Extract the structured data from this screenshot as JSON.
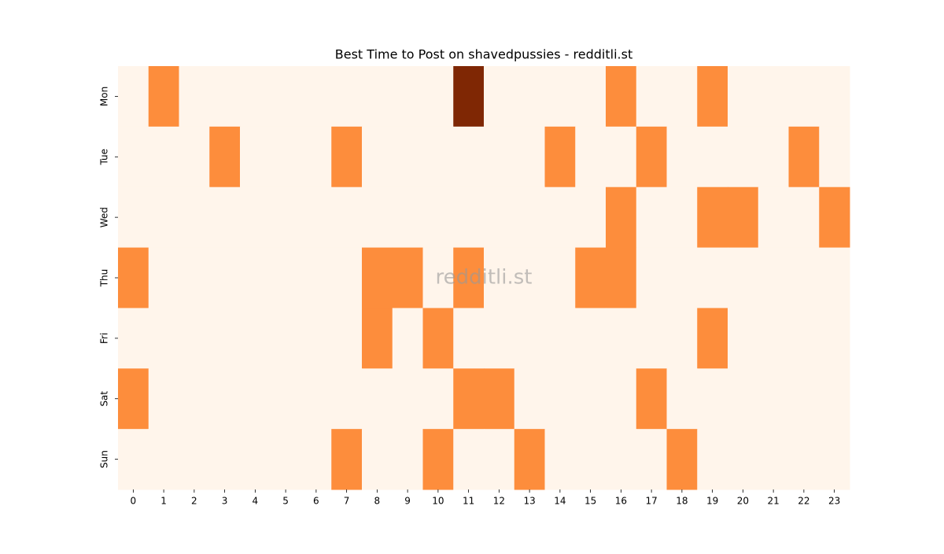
{
  "chart_data": {
    "type": "heatmap",
    "title": "Best Time to Post on shavedpussies - redditli.st",
    "watermark": "redditli.st",
    "x": [
      0,
      1,
      2,
      3,
      4,
      5,
      6,
      7,
      8,
      9,
      10,
      11,
      12,
      13,
      14,
      15,
      16,
      17,
      18,
      19,
      20,
      21,
      22,
      23
    ],
    "y": [
      "Mon",
      "Tue",
      "Wed",
      "Thu",
      "Fri",
      "Sat",
      "Sun"
    ],
    "values": [
      [
        0,
        1,
        0,
        0,
        0,
        0,
        0,
        0,
        0,
        0,
        0,
        2,
        0,
        0,
        0,
        0,
        1,
        0,
        0,
        1,
        0,
        0,
        0,
        0
      ],
      [
        0,
        0,
        0,
        1,
        0,
        0,
        0,
        1,
        0,
        0,
        0,
        0,
        0,
        0,
        1,
        0,
        0,
        1,
        0,
        0,
        0,
        0,
        1,
        0
      ],
      [
        0,
        0,
        0,
        0,
        0,
        0,
        0,
        0,
        0,
        0,
        0,
        0,
        0,
        0,
        0,
        0,
        1,
        0,
        0,
        1,
        1,
        0,
        0,
        1
      ],
      [
        1,
        0,
        0,
        0,
        0,
        0,
        0,
        0,
        1,
        1,
        0,
        1,
        0,
        0,
        0,
        1,
        1,
        0,
        0,
        0,
        0,
        0,
        0,
        0
      ],
      [
        0,
        0,
        0,
        0,
        0,
        0,
        0,
        0,
        1,
        0,
        1,
        0,
        0,
        0,
        0,
        0,
        0,
        0,
        0,
        1,
        0,
        0,
        0,
        0
      ],
      [
        1,
        0,
        0,
        0,
        0,
        0,
        0,
        0,
        0,
        0,
        0,
        1,
        1,
        0,
        0,
        0,
        0,
        1,
        0,
        0,
        0,
        0,
        0,
        0
      ],
      [
        0,
        0,
        0,
        0,
        0,
        0,
        0,
        1,
        0,
        0,
        1,
        0,
        0,
        1,
        0,
        0,
        0,
        0,
        1,
        0,
        0,
        0,
        0,
        0
      ]
    ],
    "colormap": [
      "#fff5eb",
      "#fd8d3c",
      "#7f2704"
    ],
    "zlim": [
      0,
      2
    ]
  }
}
